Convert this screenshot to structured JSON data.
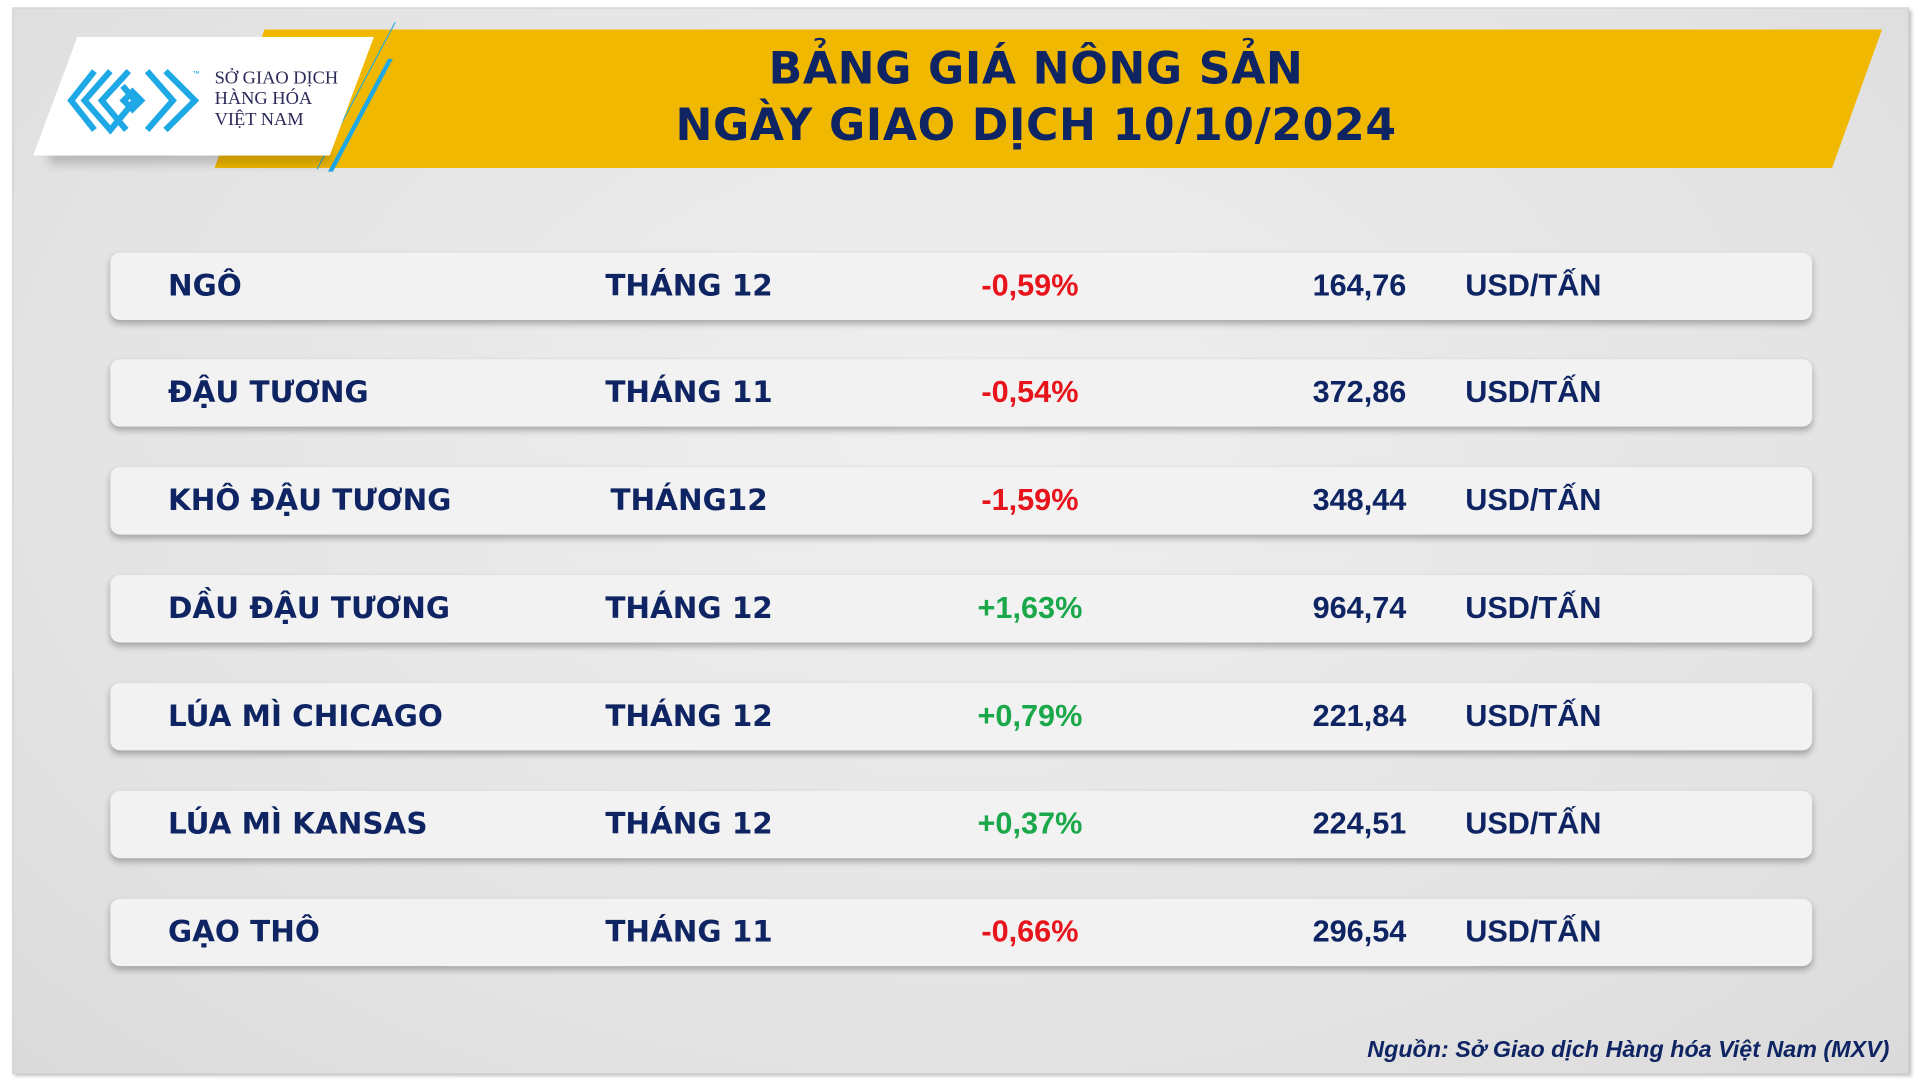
{
  "header": {
    "title_line1": "BẢNG GIÁ NÔNG SẢN",
    "title_line2": "NGÀY GIAO DỊCH 10/10/2024",
    "logo": {
      "line1": "SỞ GIAO DỊCH",
      "line2": "HÀNG HÓA",
      "line3": "VIỆT NAM",
      "tm": "™"
    }
  },
  "colors": {
    "navy": "#0f2462",
    "banner": "#f0b800",
    "down": "#e8141b",
    "up": "#1aa84a",
    "logo_blue": "#1fa8e6"
  },
  "rows": [
    {
      "name": "NGÔ",
      "month": "THÁNG 12",
      "change": "-0,59%",
      "direction": "down",
      "price": "164,76",
      "unit": "USD/TẤN"
    },
    {
      "name": "ĐẬU TƯƠNG",
      "month": "THÁNG 11",
      "change": "-0,54%",
      "direction": "down",
      "price": "372,86",
      "unit": "USD/TẤN"
    },
    {
      "name": "KHÔ ĐẬU TƯƠNG",
      "month": "THÁNG12",
      "change": "-1,59%",
      "direction": "down",
      "price": "348,44",
      "unit": "USD/TẤN"
    },
    {
      "name": "DẦU ĐẬU TƯƠNG",
      "month": "THÁNG 12",
      "change": "+1,63%",
      "direction": "up",
      "price": "964,74",
      "unit": "USD/TẤN"
    },
    {
      "name": "LÚA MÌ CHICAGO",
      "month": "THÁNG 12",
      "change": "+0,79%",
      "direction": "up",
      "price": "221,84",
      "unit": "USD/TẤN"
    },
    {
      "name": "LÚA MÌ KANSAS",
      "month": "THÁNG 12",
      "change": "+0,37%",
      "direction": "up",
      "price": "224,51",
      "unit": "USD/TẤN"
    },
    {
      "name": "GẠO THÔ",
      "month": "THÁNG 11",
      "change": "-0,66%",
      "direction": "down",
      "price": "296,54",
      "unit": "USD/TẤN"
    }
  ],
  "footer": {
    "source": "Nguồn: Sở Giao dịch Hàng hóa Việt Nam (MXV)"
  }
}
